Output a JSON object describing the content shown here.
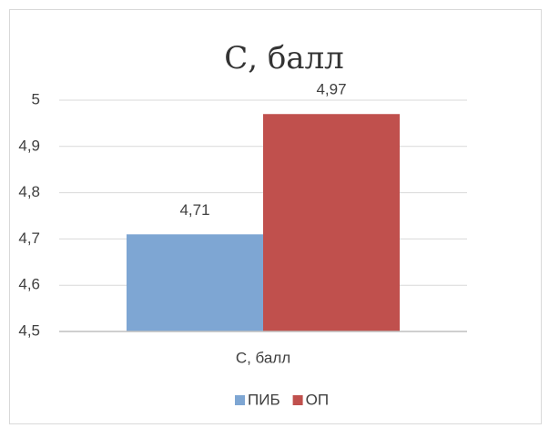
{
  "chart_data": {
    "type": "bar",
    "title": "С, балл",
    "categories": [
      "С, балл"
    ],
    "series": [
      {
        "name": "ПИБ",
        "color": "#7ea6d3",
        "values": [
          4.71
        ],
        "value_labels": [
          "4,71"
        ]
      },
      {
        "name": "ОП",
        "color": "#c0504d",
        "values": [
          4.97
        ],
        "value_labels": [
          "4,97"
        ]
      }
    ],
    "ylim": [
      4.5,
      5
    ],
    "yticks": [
      {
        "value": 4.5,
        "label": "4,5"
      },
      {
        "value": 4.6,
        "label": "4,6"
      },
      {
        "value": 4.7,
        "label": "4,7"
      },
      {
        "value": 4.8,
        "label": "4,8"
      },
      {
        "value": 4.9,
        "label": "4,9"
      },
      5
    ],
    "grid": true,
    "legend": "bottom"
  }
}
